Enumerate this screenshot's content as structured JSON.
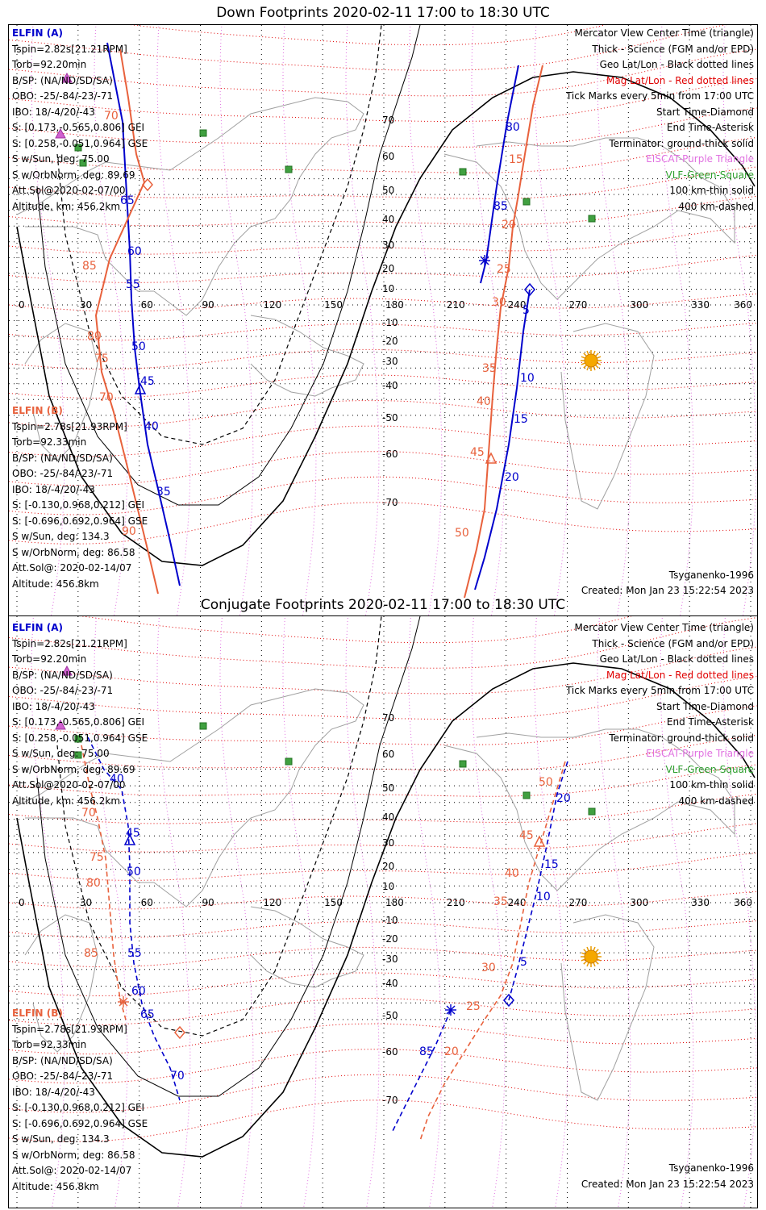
{
  "panels": [
    {
      "title": "Down Footprints 2020-02-11 17:00 to 18:30 UTC",
      "elfin_a": {
        "name": "ELFIN (A)",
        "lines": [
          "Tspin=2.82s[21.21RPM]",
          "Torb=92.20min",
          "B/SP: (NA/ND/SD/SA)",
          "OBO: -25/-84/-23/-71",
          "IBO: 18/-4/20/-43",
          "S: [0.173,-0.565,0.806] GEI",
          "S: [0.258,-0.051,0.964] GSE",
          "S w/Sun, deg: 75.00",
          "S w/OrbNorm, deg: 89.69",
          "Att.Sol@2020-02-07/00",
          "Altitude, km: 456.2km"
        ]
      },
      "elfin_b": {
        "name": "ELFIN (B)",
        "lines": [
          "Tspin=2.78s[21.93RPM]",
          "Torb=92.33min",
          "B/SP: (NA/ND/SD/SA)",
          "OBO: -25/-84/-23/-71",
          "IBO: 18/-4/20/-43",
          "S: [-0.130,0.968,0.212] GEI",
          "S: [-0.696,0.692,0.964] GSE",
          "S w/Sun, deg: 134.3",
          "S w/OrbNorm, deg: 86.58",
          "Att.Sol@: 2020-02-14/07",
          "Altitude: 456.8km"
        ]
      },
      "legend": [
        {
          "text": "Mercator View Center Time (triangle)",
          "color": "#000000"
        },
        {
          "text": "Thick - Science (FGM and/or EPD)",
          "color": "#000000"
        },
        {
          "text": "Geo Lat/Lon - Black dotted lines",
          "color": "#000000"
        },
        {
          "text": "Mag Lat/Lon - Red dotted lines",
          "color": "#e00000"
        },
        {
          "text": "Tick Marks every 5min from 17:00 UTC",
          "color": "#000000"
        },
        {
          "text": "Start Time-Diamond",
          "color": "#000000"
        },
        {
          "text": "End Time-Asterisk",
          "color": "#000000"
        },
        {
          "text": "Terminator: ground-thick solid",
          "color": "#000000"
        },
        {
          "text": "EISCAT-Purple Triangle",
          "color": "#e070e0"
        },
        {
          "text": "VLF-Green-Square",
          "color": "#30a030"
        },
        {
          "text": "100 km-thin solid",
          "color": "#000000"
        },
        {
          "text": "400 km-dashed",
          "color": "#000000"
        }
      ],
      "model": "Tsyganenko-1996",
      "created": "Created: Mon Jan 23 15:22:54 2023",
      "track_a": {
        "points": [
          [
            122,
            22
          ],
          [
            141,
            120
          ],
          [
            150,
            280
          ],
          [
            152,
            340
          ],
          [
            156,
            400
          ],
          [
            162,
            450
          ],
          [
            172,
            520
          ],
          [
            185,
            575
          ],
          [
            200,
            640
          ],
          [
            212,
            695
          ]
        ],
        "dashed": false,
        "labels": [
          {
            "t": "65",
            "x": 138,
            "y": 222
          },
          {
            "t": "60",
            "x": 147,
            "y": 285
          },
          {
            "t": "55",
            "x": 145,
            "y": 326
          },
          {
            "t": "50",
            "x": 152,
            "y": 403
          },
          {
            "t": "45",
            "x": 163,
            "y": 446
          },
          {
            "t": "40",
            "x": 168,
            "y": 502
          },
          {
            "t": "35",
            "x": 183,
            "y": 583
          }
        ],
        "center": [
          163,
          452
        ],
        "start": null,
        "end": null
      },
      "track_b": {
        "points": [
          [
            138,
            30
          ],
          [
            148,
            90
          ],
          [
            158,
            160
          ],
          [
            168,
            195
          ],
          [
            125,
            290
          ],
          [
            108,
            360
          ],
          [
            115,
            430
          ],
          [
            130,
            480
          ],
          [
            150,
            560
          ],
          [
            172,
            650
          ],
          [
            185,
            705
          ]
        ],
        "dashed": false,
        "labels": [
          {
            "t": "70",
            "x": 118,
            "y": 117
          },
          {
            "t": "85",
            "x": 91,
            "y": 303
          },
          {
            "t": "80",
            "x": 97,
            "y": 390
          },
          {
            "t": "75",
            "x": 106,
            "y": 418
          },
          {
            "t": "70",
            "x": 112,
            "y": 466
          },
          {
            "t": "90",
            "x": 140,
            "y": 632
          }
        ],
        "center": null,
        "start": [
          172,
          198
        ],
        "end": null
      },
      "track_a2": {
        "points": [
          [
            632,
            50
          ],
          [
            618,
            120
          ],
          [
            605,
            200
          ],
          [
            592,
            292
          ],
          [
            585,
            320
          ]
        ],
        "labels": [
          {
            "t": "80",
            "x": 616,
            "y": 131
          },
          {
            "t": "85",
            "x": 601,
            "y": 229
          }
        ],
        "end": [
          590,
          292
        ]
      },
      "track_a3": {
        "points": [
          [
            646,
            328
          ],
          [
            638,
            380
          ],
          [
            630,
            450
          ],
          [
            620,
            520
          ],
          [
            605,
            600
          ],
          [
            590,
            660
          ],
          [
            578,
            700
          ]
        ],
        "labels": [
          {
            "t": "5",
            "x": 637,
            "y": 358
          },
          {
            "t": "10",
            "x": 634,
            "y": 442
          },
          {
            "t": "15",
            "x": 626,
            "y": 493
          },
          {
            "t": "20",
            "x": 615,
            "y": 565
          }
        ],
        "start": [
          646,
          328
        ]
      },
      "track_b2": {
        "points": [
          [
            662,
            50
          ],
          [
            650,
            100
          ],
          [
            640,
            160
          ],
          [
            632,
            210
          ],
          [
            625,
            250
          ],
          [
            620,
            300
          ],
          [
            610,
            350
          ],
          [
            605,
            400
          ],
          [
            600,
            460
          ],
          [
            595,
            530
          ],
          [
            590,
            600
          ],
          [
            580,
            650
          ],
          [
            565,
            710
          ]
        ],
        "labels": [
          {
            "t": "15",
            "x": 620,
            "y": 171
          },
          {
            "t": "20",
            "x": 611,
            "y": 252
          },
          {
            "t": "25",
            "x": 605,
            "y": 307
          },
          {
            "t": "30",
            "x": 599,
            "y": 348
          },
          {
            "t": "35",
            "x": 587,
            "y": 430
          },
          {
            "t": "40",
            "x": 580,
            "y": 471
          },
          {
            "t": "45",
            "x": 572,
            "y": 534
          },
          {
            "t": "50",
            "x": 553,
            "y": 634
          }
        ],
        "center": [
          598,
          538
        ]
      },
      "sun": [
        722,
        416
      ],
      "vlf": [
        [
          241,
          134
        ],
        [
          86,
          152
        ],
        [
          347,
          179
        ],
        [
          92,
          171
        ],
        [
          563,
          182
        ],
        [
          642,
          219
        ],
        [
          723,
          240
        ]
      ],
      "eiscat": [
        [
          72,
          66
        ],
        [
          64,
          135
        ]
      ]
    },
    {
      "title": "Conjugate Footprints 2020-02-11 17:00 to 18:30 UTC",
      "elfin_a": {
        "name": "ELFIN (A)",
        "lines": [
          "Tspin=2.82s[21.21RPM]",
          "Torb=92.20min",
          "B/SP: (NA/ND/SD/SA)",
          "OBO: -25/-84/-23/-71",
          "IBO: 18/-4/20/-43",
          "S: [0.173,-0.565,0.806] GEI",
          "S: [0.258,-0.051,0.964] GSE",
          "S w/Sun, deg: 75.00",
          "S w/OrbNorm, deg: 89.69",
          "Att.Sol@2020-02-07/00",
          "Altitude, km: 456.2km"
        ]
      },
      "elfin_b": {
        "name": "ELFIN (B)",
        "lines": [
          "Tspin=2.78s[21.93RPM]",
          "Torb=92.33min",
          "B/SP: (NA/ND/SD/SA)",
          "OBO: -25/-84/-23/-71",
          "IBO: 18/-4/20/-43",
          "S: [-0.130,0.968,0.212] GEI",
          "S: [-0.696,0.692,0.964] GSE",
          "S w/Sun, deg: 134.3",
          "S w/OrbNorm, deg: 86.58",
          "Att.Sol@: 2020-02-14/07",
          "Altitude: 456.8km"
        ]
      },
      "legend": [
        {
          "text": "Mercator View Center Time (triangle)",
          "color": "#000000"
        },
        {
          "text": "Thick - Science (FGM and/or EPD)",
          "color": "#000000"
        },
        {
          "text": "Geo Lat/Lon - Black dotted lines",
          "color": "#000000"
        },
        {
          "text": "Mag Lat/Lon - Red dotted lines",
          "color": "#e00000"
        },
        {
          "text": "Tick Marks every 5min from 17:00 UTC",
          "color": "#000000"
        },
        {
          "text": "Start Time-Diamond",
          "color": "#000000"
        },
        {
          "text": "End Time-Asterisk",
          "color": "#000000"
        },
        {
          "text": "Terminator: ground-thick solid",
          "color": "#000000"
        },
        {
          "text": "EISCAT-Purple Triangle",
          "color": "#e070e0"
        },
        {
          "text": "VLF-Green-Square",
          "color": "#30a030"
        },
        {
          "text": "100 km-thin solid",
          "color": "#000000"
        },
        {
          "text": "400 km-dashed",
          "color": "#000000"
        }
      ],
      "model": "Tsyganenko-1996",
      "created": "Created: Mon Jan 23 15:22:54 2023",
      "track_a": {
        "points": [
          [
            98,
            150
          ],
          [
            118,
            190
          ],
          [
            140,
            215
          ],
          [
            148,
            260
          ],
          [
            150,
            310
          ],
          [
            150,
            380
          ],
          [
            155,
            430
          ],
          [
            165,
            480
          ],
          [
            180,
            520
          ],
          [
            200,
            560
          ],
          [
            212,
            600
          ]
        ],
        "dashed": true,
        "labels": [
          {
            "t": "40",
            "x": 125,
            "y": 206
          },
          {
            "t": "45",
            "x": 145,
            "y": 273
          },
          {
            "t": "50",
            "x": 146,
            "y": 321
          },
          {
            "t": "55",
            "x": 147,
            "y": 422
          },
          {
            "t": "60",
            "x": 152,
            "y": 469
          },
          {
            "t": "65",
            "x": 163,
            "y": 498
          },
          {
            "t": "70",
            "x": 200,
            "y": 574
          }
        ],
        "center": [
          150,
          278
        ],
        "start": null,
        "end": null
      },
      "track_b": {
        "points": [
          [
            88,
            150
          ],
          [
            100,
            210
          ],
          [
            110,
            250
          ],
          [
            120,
            300
          ],
          [
            125,
            360
          ],
          [
            130,
            420
          ],
          [
            138,
            475
          ],
          [
            145,
            500
          ]
        ],
        "dashed": true,
        "labels": [
          {
            "t": "70",
            "x": 90,
            "y": 248
          },
          {
            "t": "75",
            "x": 100,
            "y": 303
          },
          {
            "t": "80",
            "x": 96,
            "y": 335
          },
          {
            "t": "85",
            "x": 93,
            "y": 422
          }
        ],
        "center": null,
        "start": [
          212,
          516
        ],
        "end": [
          142,
          478
        ]
      },
      "track_a2": {
        "points": [
          [
            548,
            488
          ],
          [
            530,
            530
          ],
          [
            510,
            570
          ],
          [
            490,
            610
          ],
          [
            475,
            640
          ]
        ],
        "labels": [
          {
            "t": "85",
            "x": 509,
            "y": 544
          }
        ],
        "end": [
          548,
          488
        ]
      },
      "track_a3": {
        "points": [
          [
            693,
            180
          ],
          [
            680,
            220
          ],
          [
            668,
            280
          ],
          [
            655,
            340
          ],
          [
            640,
            400
          ],
          [
            630,
            440
          ],
          [
            620,
            476
          ]
        ],
        "labels": [
          {
            "t": "20",
            "x": 679,
            "y": 230
          },
          {
            "t": "15",
            "x": 664,
            "y": 312
          },
          {
            "t": "10",
            "x": 654,
            "y": 352
          },
          {
            "t": "5",
            "x": 634,
            "y": 433
          }
        ],
        "start": [
          620,
          476
        ]
      },
      "track_b2": {
        "points": [
          [
            690,
            180
          ],
          [
            675,
            230
          ],
          [
            660,
            280
          ],
          [
            645,
            330
          ],
          [
            635,
            380
          ],
          [
            625,
            430
          ],
          [
            610,
            470
          ],
          [
            590,
            500
          ],
          [
            565,
            540
          ],
          [
            540,
            580
          ],
          [
            520,
            620
          ],
          [
            510,
            650
          ]
        ],
        "labels": [
          {
            "t": "50",
            "x": 657,
            "y": 210
          },
          {
            "t": "45",
            "x": 633,
            "y": 276
          },
          {
            "t": "40",
            "x": 615,
            "y": 323
          },
          {
            "t": "35",
            "x": 601,
            "y": 358
          },
          {
            "t": "30",
            "x": 586,
            "y": 440
          },
          {
            "t": "25",
            "x": 567,
            "y": 488
          },
          {
            "t": "20",
            "x": 540,
            "y": 544
          }
        ],
        "center": [
          658,
          280
        ]
      },
      "sun": [
        722,
        422
      ],
      "vlf": [
        [
          241,
          136
        ],
        [
          86,
          152
        ],
        [
          347,
          180
        ],
        [
          86,
          172
        ],
        [
          563,
          183
        ],
        [
          642,
          222
        ],
        [
          723,
          242
        ]
      ],
      "eiscat": [
        [
          72,
          68
        ],
        [
          64,
          135
        ]
      ]
    }
  ],
  "axis": {
    "lon_labels": [
      "0",
      "30",
      "60",
      "90",
      "120",
      "150",
      "180",
      "210",
      "240",
      "270",
      "300",
      "330",
      "360"
    ],
    "lat_labels": [
      "70",
      "60",
      "50",
      "40",
      "30",
      "20",
      "10",
      "-10",
      "-20",
      "-30",
      "-40",
      "-50",
      "-60",
      "-70"
    ]
  }
}
